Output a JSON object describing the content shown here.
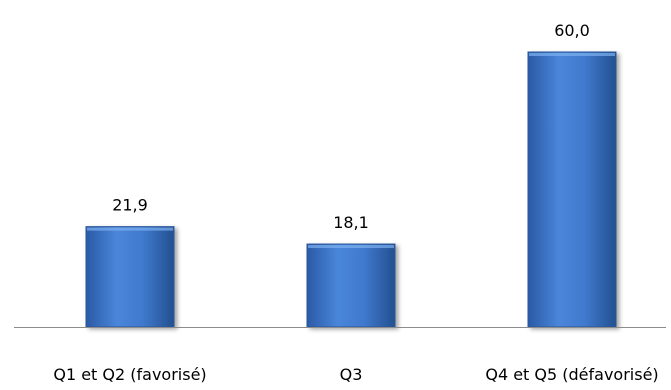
{
  "chart_data": {
    "type": "bar",
    "categories": [
      "Q1 et Q2 (favorisé)",
      "Q3",
      "Q4 et Q5 (défavorisé)"
    ],
    "values": [
      21.9,
      18.1,
      60.0
    ],
    "value_labels": [
      "21,9",
      "18,1",
      "60,0"
    ],
    "ylim": [
      0,
      60
    ],
    "grid": false,
    "colors": {
      "bar_top": "#5b93df",
      "bar_mid": "#3b73c7",
      "bar_bottom": "#2a5aa6",
      "bar_stroke": "#2b579a",
      "axis": "#8c8c8c"
    }
  }
}
